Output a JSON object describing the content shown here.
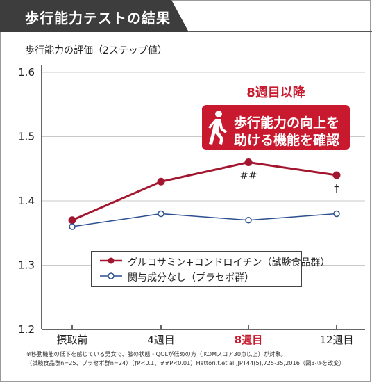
{
  "header": {
    "title": "歩行能力テストの結果"
  },
  "chart_data": {
    "type": "line",
    "ylabel": "歩行能力の評価（2ステップ値）",
    "categories": [
      "摂取前",
      "4週目",
      "8週目",
      "12週目"
    ],
    "highlight_category": "8週目",
    "ylim": [
      1.2,
      1.6
    ],
    "yticks": [
      "1.6",
      "1.5",
      "1.4",
      "1.3",
      "1.2"
    ],
    "ytick_values": [
      1.6,
      1.5,
      1.4,
      1.3,
      1.2
    ],
    "grid": true,
    "legend_position": "bottom-center",
    "series": [
      {
        "name": "グルコサミン+コンドロイチン（試験食品群）",
        "values": [
          1.37,
          1.43,
          1.46,
          1.44
        ],
        "color": "#a3162f"
      },
      {
        "name": "関与成分なし（プラセボ群）",
        "values": [
          1.36,
          1.38,
          1.37,
          1.38
        ],
        "color": "#2b4f8f"
      }
    ],
    "annotations": [
      {
        "category": "8週目",
        "text": "##"
      },
      {
        "category": "12週目",
        "text": "†"
      }
    ]
  },
  "callout": {
    "heading": "8週目以降",
    "line1": "歩行能力の向上を",
    "line2": "助ける機能を確認",
    "icon": "walking-person-icon",
    "color": "#c8192e"
  },
  "footnotes": {
    "line1": "※移動機能の低下を感じている男女で、膝の状態・QOLが低めの方（JKOMスコア30点以上）が対象。",
    "line2": "（試験食品群n=25、プラセボ群n=24）（†P<0.1、##P<0.01）Hattori.t.et al.,JPT44(5),725-35,2016（図3-③を改変）"
  }
}
